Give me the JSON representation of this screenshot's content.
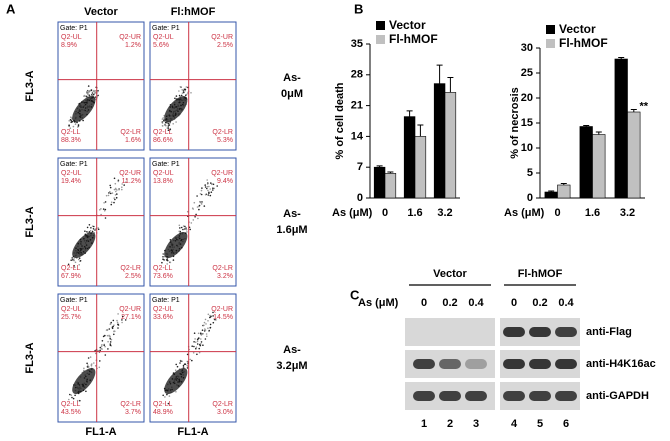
{
  "panel_a": {
    "label": "A",
    "columns": [
      "Vector",
      "Fl:hMOF"
    ],
    "x_labels": [
      "FL1-A",
      "FL1-A"
    ],
    "rows": [
      {
        "label": [
          "As-",
          "0μM"
        ],
        "y_label": "FL3-A",
        "plots": [
          {
            "gate": "Gate: P1",
            "quadrants": [
              {
                "name": "Q2-UL",
                "value": "8.9%"
              },
              {
                "name": "Q2-UR",
                "value": "1.2%"
              },
              {
                "name": "Q2-LL",
                "value": "88.3%"
              },
              {
                "name": "Q2-LR",
                "value": "1.6%"
              }
            ]
          },
          {
            "gate": "Gate: P1",
            "quadrants": [
              {
                "name": "Q2-UL",
                "value": "5.6%"
              },
              {
                "name": "Q2-UR",
                "value": "2.5%"
              },
              {
                "name": "Q2-LL",
                "value": "86.6%"
              },
              {
                "name": "Q2-LR",
                "value": "5.3%"
              }
            ]
          }
        ]
      },
      {
        "label": [
          "As-",
          "1.6μM"
        ],
        "y_label": "FL3-A",
        "plots": [
          {
            "gate": "Gate: P1",
            "quadrants": [
              {
                "name": "Q2-UL",
                "value": "19.4%"
              },
              {
                "name": "Q2-UR",
                "value": "11.2%"
              },
              {
                "name": "Q2-LL",
                "value": "67.9%"
              },
              {
                "name": "Q2-LR",
                "value": "2.5%"
              }
            ]
          },
          {
            "gate": "Gate: P1",
            "quadrants": [
              {
                "name": "Q2-UL",
                "value": "13.8%"
              },
              {
                "name": "Q2-UR",
                "value": "9.4%"
              },
              {
                "name": "Q2-LL",
                "value": "73.6%"
              },
              {
                "name": "Q2-LR",
                "value": "3.2%"
              }
            ]
          }
        ]
      },
      {
        "label": [
          "As-",
          "3.2μM"
        ],
        "y_label": "FL3-A",
        "plots": [
          {
            "gate": "Gate: P1",
            "quadrants": [
              {
                "name": "Q2-UL",
                "value": "25.7%"
              },
              {
                "name": "Q2-UR",
                "value": "27.1%"
              },
              {
                "name": "Q2-LL",
                "value": "43.5%"
              },
              {
                "name": "Q2-LR",
                "value": "3.7%"
              }
            ]
          },
          {
            "gate": "Gate: P1",
            "quadrants": [
              {
                "name": "Q2-UL",
                "value": "33.6%"
              },
              {
                "name": "Q2-UR",
                "value": "14.5%"
              },
              {
                "name": "Q2-LL",
                "value": "48.9%"
              },
              {
                "name": "Q2-LR",
                "value": "3.0%"
              }
            ]
          }
        ]
      }
    ]
  },
  "panel_b_label": "B",
  "chart_data": [
    {
      "type": "bar",
      "y_label": "% of cell death",
      "x_label": "As (μM)",
      "categories": [
        "0",
        "1.6",
        "3.2"
      ],
      "series": [
        {
          "name": "Vector",
          "color": "#000000",
          "values": [
            7,
            18.5,
            26
          ],
          "errors": [
            0.3,
            1.3,
            4.2
          ]
        },
        {
          "name": "Fl-hMOF",
          "color": "#c0c0c0",
          "values": [
            5.6,
            14,
            24
          ],
          "errors": [
            0.3,
            2.6,
            3.4
          ]
        }
      ],
      "ylim": [
        0,
        35
      ],
      "yticks": [
        0,
        7,
        14,
        21,
        28,
        35
      ]
    },
    {
      "type": "bar",
      "y_label": "% of necrosis",
      "x_label": "As (μM)",
      "categories": [
        "0",
        "1.6",
        "3.2"
      ],
      "series": [
        {
          "name": "Vector",
          "color": "#000000",
          "values": [
            1.2,
            14.3,
            27.8
          ],
          "errors": [
            0.2,
            0.2,
            0.3
          ]
        },
        {
          "name": "Fl-hMOF",
          "color": "#c0c0c0",
          "values": [
            2.6,
            12.7,
            17.2
          ],
          "errors": [
            0.3,
            0.5,
            0.5
          ]
        }
      ],
      "ylim": [
        0,
        30
      ],
      "yticks": [
        0,
        5,
        10,
        15,
        20,
        25,
        30
      ],
      "annotation": "**"
    }
  ],
  "panel_c": {
    "label": "C",
    "groups": [
      "Vector",
      "Fl-hMOF"
    ],
    "dose_label": "As (μM)",
    "lanes": [
      "0",
      "0.2",
      "0.4",
      "0",
      "0.2",
      "0.4"
    ],
    "blots": [
      "anti-Flag",
      "anti-H4K16ac",
      "anti-GAPDH"
    ],
    "lane_numbers": [
      "1",
      "2",
      "3",
      "4",
      "5",
      "6"
    ]
  }
}
